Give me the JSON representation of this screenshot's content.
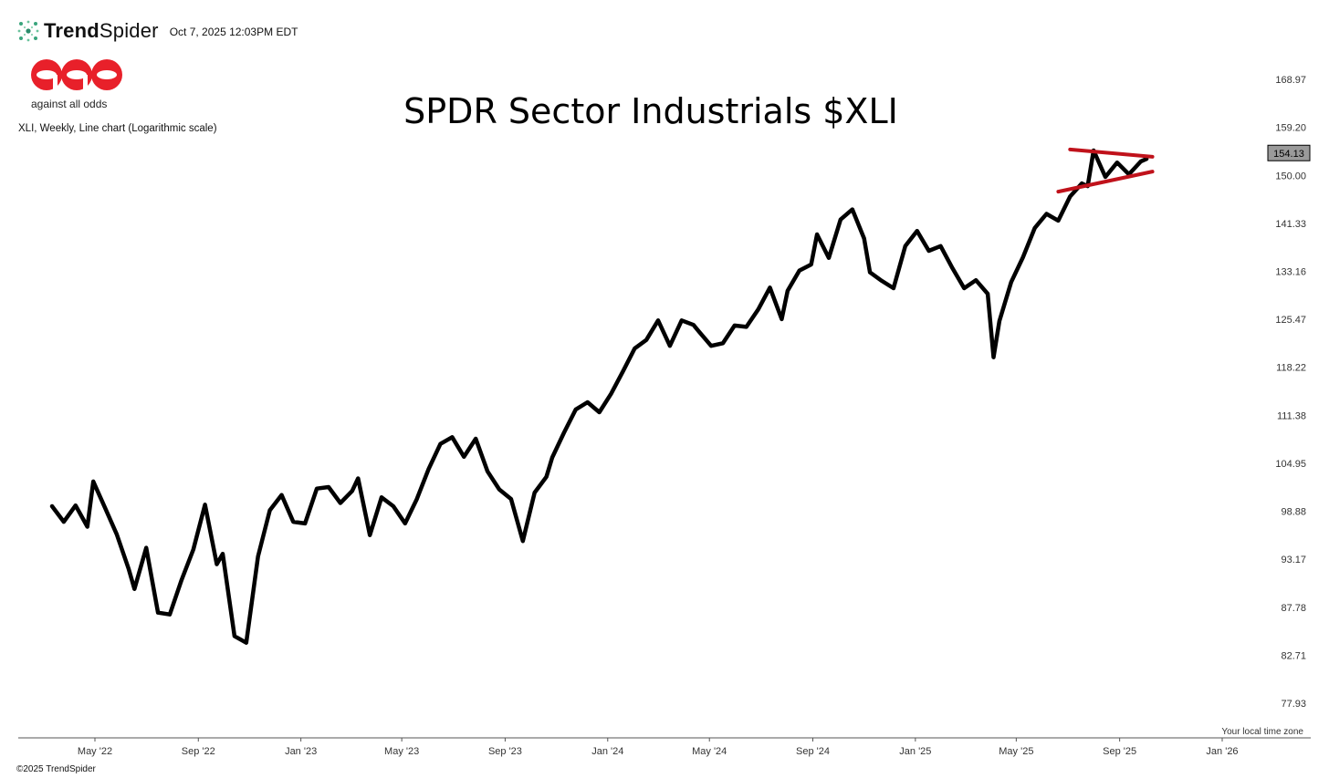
{
  "header": {
    "brand_trend": "Trend",
    "brand_spider": "Spider",
    "brand_icon": "spider-dots-icon",
    "timestamp": "Oct 7, 2025 12:03PM EDT"
  },
  "watermark": {
    "logo_icon": "aao-logo-icon",
    "logo_color": "#e8202a",
    "tagline": "against all odds"
  },
  "chart_info": "XLI, Weekly, Line chart (Logarithmic scale)",
  "footer": "©2025 TrendSpider",
  "timezone_note": "Your local time zone",
  "chart_data": {
    "type": "line",
    "title": "SPDR Sector Industrials $XLI",
    "scale": "log",
    "ylim": [
      75,
      175
    ],
    "y_ticks": [
      "168.97",
      "159.20",
      "150.00",
      "141.33",
      "133.16",
      "125.47",
      "118.22",
      "111.38",
      "104.95",
      "98.88",
      "93.17",
      "87.78",
      "82.71",
      "77.93"
    ],
    "x_ticks": [
      "May '22",
      "Sep '22",
      "Jan '23",
      "May '23",
      "Sep '23",
      "Jan '24",
      "May '24",
      "Sep '24",
      "Jan '25",
      "May '25",
      "Sep '25",
      "Jan '26"
    ],
    "x_tick_dates": [
      "2022-05-01",
      "2022-09-01",
      "2023-01-01",
      "2023-05-01",
      "2023-09-01",
      "2024-01-01",
      "2024-05-01",
      "2024-09-01",
      "2025-01-01",
      "2025-05-01",
      "2025-09-01",
      "2026-01-01"
    ],
    "last_value": "154.13",
    "line_color": "#000000",
    "trendline_color": "#c0121b",
    "grid": false,
    "series": [
      {
        "x": [
          "2022-03-11",
          "2022-03-25",
          "2022-04-08",
          "2022-04-22",
          "2022-04-29",
          "2022-05-13",
          "2022-05-27",
          "2022-06-10",
          "2022-06-17",
          "2022-07-01",
          "2022-07-15",
          "2022-07-29",
          "2022-08-12",
          "2022-08-26",
          "2022-09-09",
          "2022-09-23",
          "2022-09-30",
          "2022-10-14",
          "2022-10-28",
          "2022-11-11",
          "2022-11-25",
          "2022-12-09",
          "2022-12-23",
          "2023-01-06",
          "2023-01-20",
          "2023-02-03",
          "2023-02-17",
          "2023-03-03",
          "2023-03-10",
          "2023-03-24",
          "2023-04-07",
          "2023-04-21",
          "2023-05-05",
          "2023-05-19",
          "2023-06-02",
          "2023-06-16",
          "2023-06-30",
          "2023-07-14",
          "2023-07-28",
          "2023-08-11",
          "2023-08-25",
          "2023-09-08",
          "2023-09-22",
          "2023-10-06",
          "2023-10-20",
          "2023-10-27",
          "2023-11-10",
          "2023-11-24",
          "2023-12-08",
          "2023-12-22",
          "2024-01-05",
          "2024-01-19",
          "2024-02-02",
          "2024-02-16",
          "2024-03-01",
          "2024-03-15",
          "2024-03-29",
          "2024-04-12",
          "2024-04-19",
          "2024-05-03",
          "2024-05-17",
          "2024-05-31",
          "2024-06-14",
          "2024-06-28",
          "2024-07-12",
          "2024-07-26",
          "2024-08-02",
          "2024-08-16",
          "2024-08-30",
          "2024-09-06",
          "2024-09-20",
          "2024-10-04",
          "2024-10-18",
          "2024-11-01",
          "2024-11-08",
          "2024-11-22",
          "2024-12-06",
          "2024-12-20",
          "2025-01-03",
          "2025-01-17",
          "2025-01-31",
          "2025-02-14",
          "2025-02-28",
          "2025-03-14",
          "2025-03-28",
          "2025-04-04",
          "2025-04-11",
          "2025-04-25",
          "2025-05-09",
          "2025-05-23",
          "2025-06-06",
          "2025-06-20",
          "2025-07-04",
          "2025-07-18",
          "2025-07-25",
          "2025-08-01",
          "2025-08-15",
          "2025-08-29",
          "2025-09-12",
          "2025-09-26",
          "2025-10-03"
        ],
        "y": [
          99.5,
          97.6,
          99.6,
          97.0,
          102.6,
          99.3,
          96.1,
          92.1,
          89.8,
          94.5,
          87.2,
          87.0,
          90.8,
          94.3,
          99.7,
          92.6,
          93.8,
          84.7,
          84.0,
          93.5,
          99.0,
          100.9,
          97.6,
          97.4,
          101.7,
          101.9,
          99.9,
          101.4,
          103.0,
          96.0,
          100.6,
          99.5,
          97.4,
          100.4,
          104.2,
          107.5,
          108.4,
          105.8,
          108.2,
          103.9,
          101.6,
          100.4,
          95.3,
          101.2,
          103.2,
          105.7,
          109.0,
          112.2,
          113.2,
          111.8,
          114.4,
          117.6,
          121.0,
          122.3,
          125.3,
          121.4,
          125.3,
          124.6,
          123.5,
          121.4,
          121.8,
          124.5,
          124.3,
          127.0,
          130.5,
          125.5,
          130.0,
          133.3,
          134.3,
          139.4,
          135.4,
          142.0,
          143.8,
          138.7,
          133.0,
          131.6,
          130.4,
          137.4,
          140.0,
          136.6,
          137.4,
          133.7,
          130.4,
          131.7,
          129.5,
          119.7,
          125.2,
          131.4,
          135.5,
          140.5,
          143.0,
          141.8,
          146.1,
          148.5,
          148.0,
          154.7,
          149.7,
          152.4,
          150.2,
          152.6,
          153.1
        ]
      }
    ],
    "trendlines": [
      {
        "from": [
          "2025-07-04",
          154.9
        ],
        "to": [
          "2025-10-10",
          153.5
        ]
      },
      {
        "from": [
          "2025-06-20",
          147.0
        ],
        "to": [
          "2025-10-10",
          150.7
        ]
      }
    ]
  }
}
